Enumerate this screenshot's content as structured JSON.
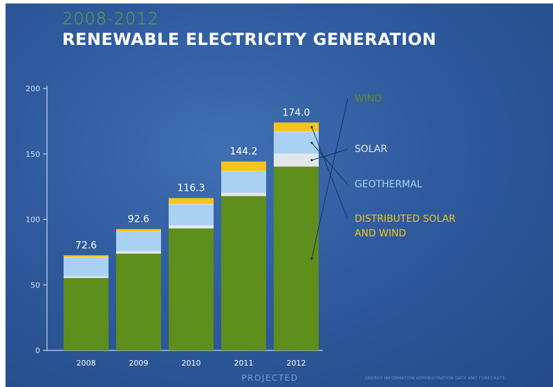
{
  "header": {
    "subtitle": "2008-2012",
    "title": "RENEWABLE ELECTRICITY GENERATION"
  },
  "footer": {
    "projected_label": "PROJECTED",
    "source_note": "ENERGY INFORMATION ADMINISTRATION DATA AND FORECASTS"
  },
  "colors": {
    "wind": "#5e8e1c",
    "solar": "#e4e7ea",
    "geothermal": "#a9d1f3",
    "distributed": "#f5c518",
    "subtitle": "#6aa32a",
    "axis": "#c8d4e8"
  },
  "chart_data": {
    "type": "bar",
    "stacked": true,
    "categories": [
      "2008",
      "2009",
      "2010",
      "2011",
      "2012"
    ],
    "totals": [
      "72.6",
      "92.6",
      "116.3",
      "144.2",
      "174.0"
    ],
    "series": [
      {
        "name": "WIND",
        "key": "wind",
        "values": [
          55.4,
          74.0,
          93.3,
          118.0,
          140.5
        ]
      },
      {
        "name": "SOLAR",
        "key": "solar",
        "values": [
          1.0,
          1.5,
          2.0,
          2.2,
          9.5
        ]
      },
      {
        "name": "GEOTHERMAL",
        "key": "geothermal",
        "values": [
          14.7,
          15.2,
          16.4,
          16.6,
          16.9
        ]
      },
      {
        "name": "DISTRIBUTED SOLAR\nAND WIND",
        "key": "distributed",
        "values": [
          1.5,
          1.9,
          4.6,
          7.4,
          7.1
        ]
      }
    ],
    "ylim": [
      0,
      200
    ],
    "yticks": [
      0,
      50,
      100,
      150,
      200
    ],
    "xlabel": "",
    "ylabel": "",
    "legend_position": "right",
    "projected_categories": [
      "2011",
      "2012"
    ]
  }
}
